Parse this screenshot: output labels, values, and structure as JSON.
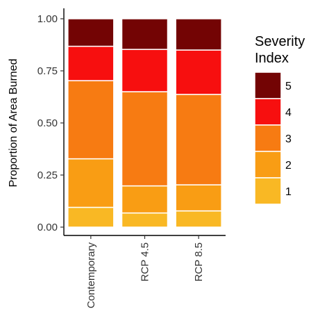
{
  "chart_data": {
    "type": "bar",
    "stacked": true,
    "normalized": true,
    "categories": [
      "Contemporary",
      "RCP 4.5",
      "RCP 8.5"
    ],
    "series": [
      {
        "name": "1",
        "color": "#F9B824",
        "values": [
          0.095,
          0.068,
          0.078
        ]
      },
      {
        "name": "2",
        "color": "#F99D14",
        "values": [
          0.233,
          0.13,
          0.125
        ]
      },
      {
        "name": "3",
        "color": "#F77B12",
        "values": [
          0.375,
          0.452,
          0.434
        ]
      },
      {
        "name": "4",
        "color": "#F70F0F",
        "values": [
          0.165,
          0.203,
          0.213
        ]
      },
      {
        "name": "5",
        "color": "#730404",
        "values": [
          0.132,
          0.147,
          0.15
        ]
      }
    ],
    "ylabel": "Proportion of Area Burned",
    "xlabel": "",
    "ylim": [
      0,
      1.0
    ],
    "yticks": [
      "0.00",
      "0.25",
      "0.50",
      "0.75",
      "1.00"
    ],
    "grid": false,
    "legend": {
      "title_lines": [
        "Severity",
        "Index"
      ],
      "placement": "right",
      "order": [
        "5",
        "4",
        "3",
        "2",
        "1"
      ]
    }
  }
}
